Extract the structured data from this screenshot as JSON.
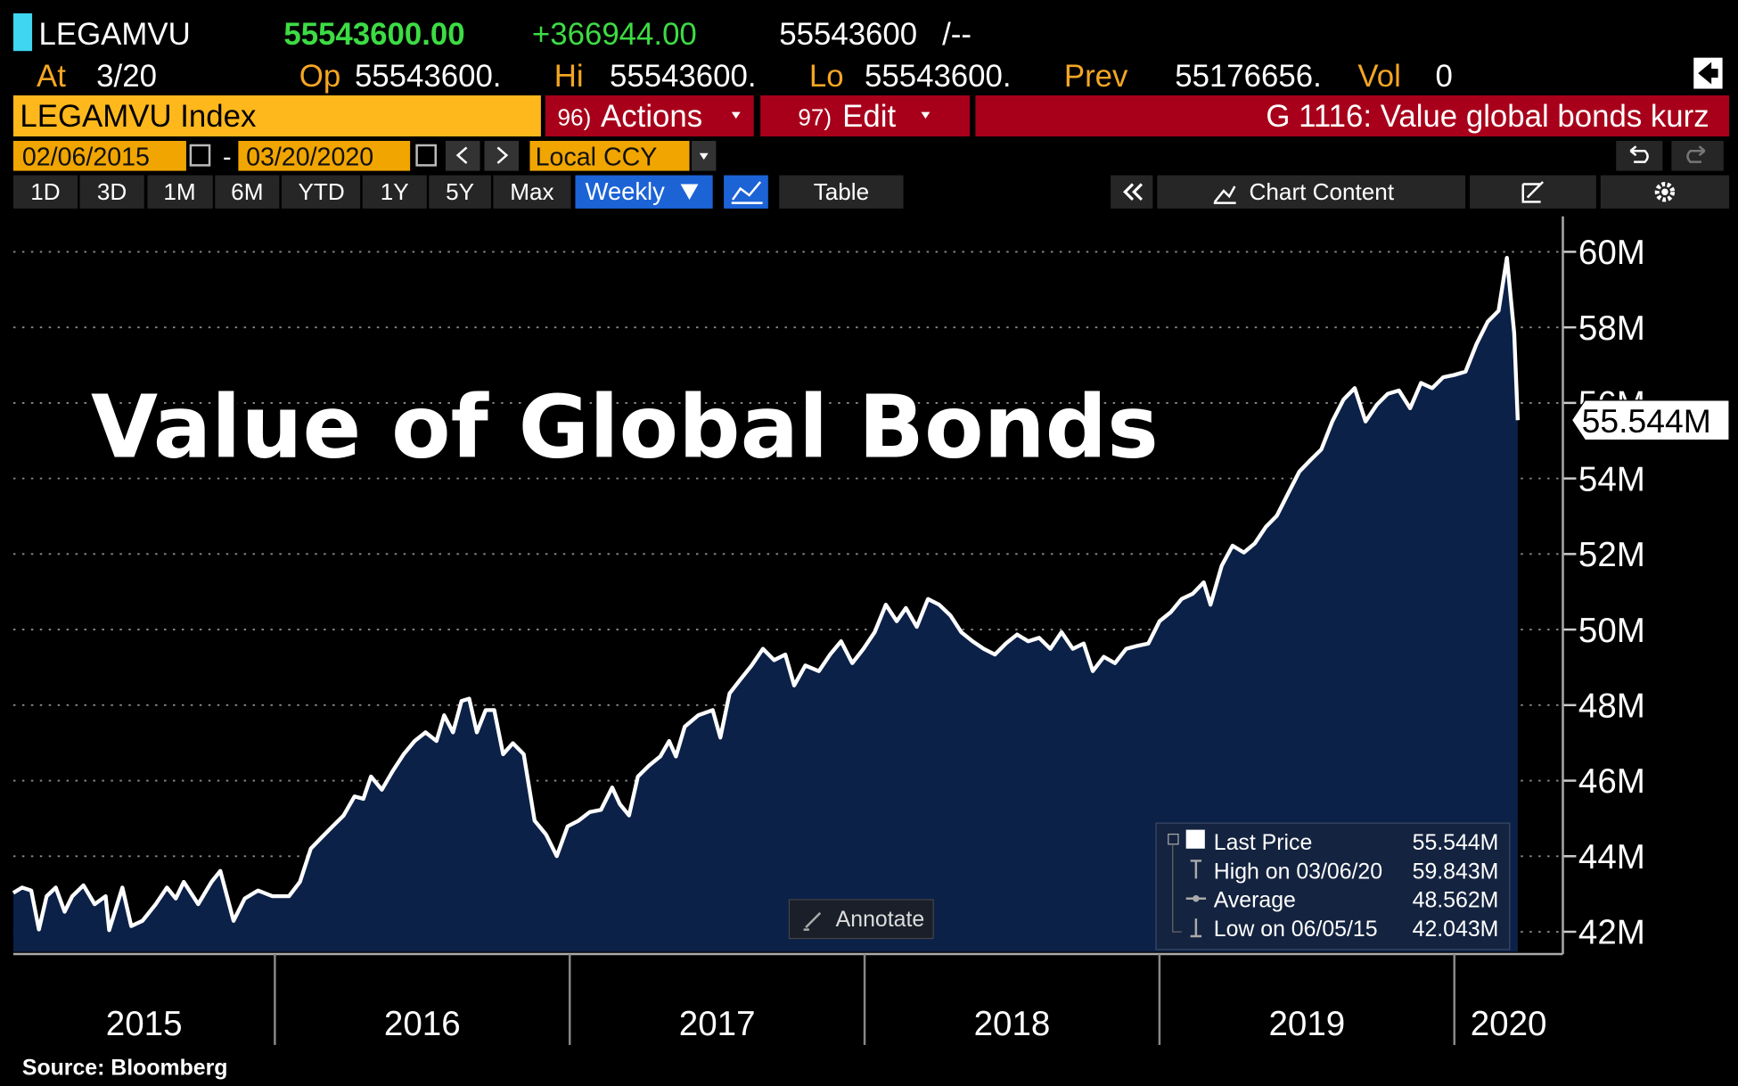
{
  "header": {
    "ticker": "LEGAMVU",
    "last": "55543600.00",
    "change": "+366944.00",
    "bid_ask": "55543600",
    "bid_ask_suffix": "/--",
    "at_label": "At",
    "at_value": "3/20",
    "open_label": "Op",
    "open": "55543600.",
    "high_label": "Hi",
    "high": "55543600.",
    "low_label": "Lo",
    "low": "55543600.",
    "prev_label": "Prev",
    "prev": "55176656.",
    "vol_label": "Vol",
    "vol": "0"
  },
  "toolbar": {
    "security": "LEGAMVU Index",
    "actions_number": "96)",
    "actions": "Actions",
    "edit_number": "97)",
    "edit": "Edit",
    "page_title": "G 1116: Value global bonds kurz"
  },
  "date_range": {
    "start": "02/06/2015",
    "separator": "-",
    "end": "03/20/2020",
    "currency": "Local CCY"
  },
  "chart_toolbar": {
    "periods": [
      "1D",
      "3D",
      "1M",
      "6M",
      "YTD",
      "1Y",
      "5Y",
      "Max"
    ],
    "frequency": "Weekly",
    "table": "Table",
    "chart_content": "Chart Content"
  },
  "chart_data": {
    "type": "line",
    "title": "Value of Global Bonds",
    "x": [
      2015.113,
      2015.143,
      2015.174,
      2015.2,
      2015.226,
      2015.257,
      2015.287,
      2015.313,
      2015.351,
      2015.389,
      2015.426,
      2015.438,
      2015.483,
      2015.513,
      2015.551,
      2015.596,
      2015.634,
      2015.664,
      2015.691,
      2015.74,
      2015.785,
      2015.815,
      2015.86,
      2015.898,
      2015.943,
      2015.992,
      2016.048,
      2016.085,
      2016.122,
      2016.159,
      2016.196,
      2016.233,
      2016.27,
      2016.3,
      2016.326,
      2016.363,
      2016.4,
      2016.437,
      2016.474,
      2016.511,
      2016.548,
      2016.574,
      2016.604,
      2016.633,
      2016.659,
      2016.685,
      2016.715,
      2016.744,
      2016.774,
      2016.807,
      2016.844,
      2016.881,
      2016.919,
      2016.956,
      2016.993,
      2017.03,
      2017.068,
      2017.106,
      2017.144,
      2017.17,
      2017.201,
      2017.231,
      2017.269,
      2017.307,
      2017.337,
      2017.36,
      2017.39,
      2017.436,
      2017.485,
      2017.511,
      2017.542,
      2017.58,
      2017.617,
      2017.655,
      2017.693,
      2017.731,
      2017.761,
      2017.799,
      2017.845,
      2017.883,
      2017.92,
      2017.958,
      2017.996,
      2018.034,
      2018.072,
      2018.109,
      2018.14,
      2018.177,
      2018.215,
      2018.253,
      2018.291,
      2018.328,
      2018.366,
      2018.404,
      2018.442,
      2018.479,
      2018.517,
      2018.555,
      2018.592,
      2018.63,
      2018.668,
      2018.706,
      2018.743,
      2018.774,
      2018.811,
      2018.849,
      2018.887,
      2018.925,
      2018.962,
      2019.0,
      2019.038,
      2019.075,
      2019.113,
      2019.15,
      2019.173,
      2019.211,
      2019.248,
      2019.286,
      2019.323,
      2019.361,
      2019.398,
      2019.436,
      2019.474,
      2019.511,
      2019.549,
      2019.586,
      2019.624,
      2019.662,
      2019.699,
      2019.737,
      2019.774,
      2019.812,
      2019.85,
      2019.887,
      2019.925,
      2019.962,
      2020.0,
      2020.038,
      2020.075,
      2020.113,
      2020.15,
      2020.178,
      2020.203,
      2020.215
    ],
    "series": [
      {
        "name": "Last Price",
        "color": "#ffffff",
        "fill": "#0c2148",
        "values": [
          43030000,
          43170000,
          43090000,
          42060000,
          42940000,
          43170000,
          42530000,
          42940000,
          43230000,
          42730000,
          42940000,
          42043000,
          43170000,
          42150000,
          42290000,
          42730000,
          43170000,
          42880000,
          43320000,
          42730000,
          43320000,
          43610000,
          42290000,
          42880000,
          43090000,
          42940000,
          42940000,
          43320000,
          44200000,
          44500000,
          44790000,
          45080000,
          45580000,
          45520000,
          46110000,
          45760000,
          46260000,
          46700000,
          47050000,
          47280000,
          47050000,
          47730000,
          47280000,
          48110000,
          48170000,
          47280000,
          47870000,
          47870000,
          46700000,
          46990000,
          46700000,
          44940000,
          44580000,
          44000000,
          44790000,
          44940000,
          45170000,
          45230000,
          45820000,
          45380000,
          45080000,
          46110000,
          46400000,
          46640000,
          47050000,
          46640000,
          47430000,
          47730000,
          47870000,
          47140000,
          48310000,
          48690000,
          49050000,
          49490000,
          49190000,
          49340000,
          48520000,
          49050000,
          48900000,
          49340000,
          49690000,
          49110000,
          49490000,
          49930000,
          50660000,
          50220000,
          50570000,
          50070000,
          50810000,
          50660000,
          50370000,
          49930000,
          49690000,
          49490000,
          49340000,
          49630000,
          49870000,
          49690000,
          49780000,
          49490000,
          49930000,
          49490000,
          49630000,
          48900000,
          49280000,
          49110000,
          49490000,
          49570000,
          49630000,
          50220000,
          50460000,
          50810000,
          50950000,
          51250000,
          50660000,
          51690000,
          52220000,
          52040000,
          52280000,
          52720000,
          53010000,
          53600000,
          54180000,
          54480000,
          54770000,
          55510000,
          56090000,
          56390000,
          55510000,
          55950000,
          56240000,
          56330000,
          55860000,
          56530000,
          56390000,
          56680000,
          56740000,
          56830000,
          57560000,
          58150000,
          58440000,
          59843000,
          57850000,
          55543600
        ]
      }
    ],
    "xlim": [
      2015.113,
      2020.368
    ],
    "xticks": [
      2016,
      2017,
      2018,
      2019,
      2020
    ],
    "year_labels": [
      "2015",
      "2016",
      "2017",
      "2018",
      "2019",
      "2020"
    ],
    "ylim": [
      41470000,
      60940000
    ],
    "yticks": [
      {
        "value": 42000000,
        "label": "42M"
      },
      {
        "value": 44000000,
        "label": "44M"
      },
      {
        "value": 46000000,
        "label": "46M"
      },
      {
        "value": 48000000,
        "label": "48M"
      },
      {
        "value": 50000000,
        "label": "50M"
      },
      {
        "value": 52000000,
        "label": "52M"
      },
      {
        "value": 54000000,
        "label": "54M"
      },
      {
        "value": 56000000,
        "label": "56M"
      },
      {
        "value": 58000000,
        "label": "58M"
      },
      {
        "value": 60000000,
        "label": "60M"
      }
    ],
    "grid": true,
    "last_label": {
      "value": 55543600,
      "label": "55.544M"
    },
    "legend": {
      "position": "lower right",
      "last_value": "55.544M",
      "rows": [
        {
          "label": "High on 03/06/20",
          "value": "59.843M"
        },
        {
          "label": "Average",
          "value": "48.562M"
        },
        {
          "label": "Low on 06/05/15",
          "value": "42.043M"
        }
      ]
    },
    "annotate": "Annotate",
    "source": "Source: Bloomberg"
  }
}
